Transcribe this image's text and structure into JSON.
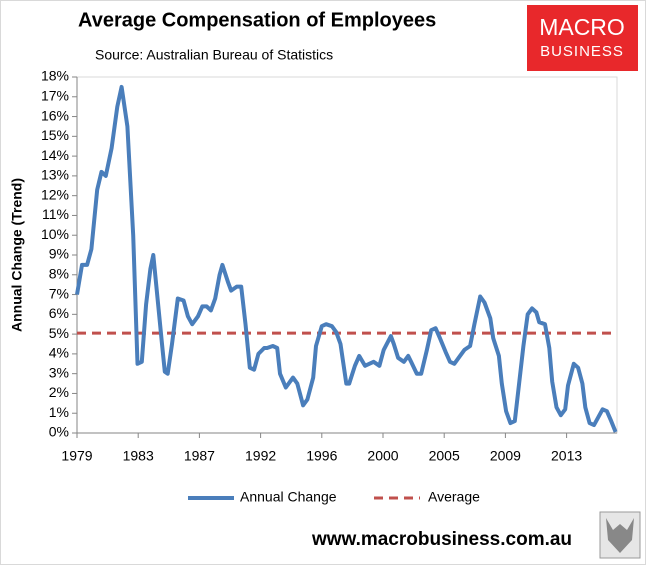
{
  "chart_data": {
    "type": "line",
    "title": "Average Compensation of Employees",
    "subtitle": "Source: Australian Bureau of Statistics",
    "ylabel": "Annual Change (Trend)",
    "logo": {
      "top": "MACRO",
      "bottom": "BUSINESS"
    },
    "footer": "www.macrobusiness.com.au",
    "xlim": [
      1979,
      2016.5
    ],
    "xticks": [
      {
        "value": 1979,
        "label": "1979"
      },
      {
        "value": 1983.25,
        "label": "1983"
      },
      {
        "value": 1987.5,
        "label": "1987"
      },
      {
        "value": 1991.75,
        "label": "1992"
      },
      {
        "value": 1996,
        "label": "1996"
      },
      {
        "value": 2000.25,
        "label": "2000"
      },
      {
        "value": 2004.5,
        "label": "2005"
      },
      {
        "value": 2008.75,
        "label": "2009"
      },
      {
        "value": 2013,
        "label": "2013"
      }
    ],
    "ylim": [
      0,
      18
    ],
    "yticks": [
      {
        "value": 0,
        "label": "0%"
      },
      {
        "value": 1,
        "label": "1%"
      },
      {
        "value": 2,
        "label": "2%"
      },
      {
        "value": 3,
        "label": "3%"
      },
      {
        "value": 4,
        "label": "4%"
      },
      {
        "value": 5,
        "label": "5%"
      },
      {
        "value": 6,
        "label": "6%"
      },
      {
        "value": 7,
        "label": "7%"
      },
      {
        "value": 8,
        "label": "8%"
      },
      {
        "value": 9,
        "label": "9%"
      },
      {
        "value": 10,
        "label": "10%"
      },
      {
        "value": 11,
        "label": "11%"
      },
      {
        "value": 12,
        "label": "12%"
      },
      {
        "value": 13,
        "label": "13%"
      },
      {
        "value": 14,
        "label": "14%"
      },
      {
        "value": 15,
        "label": "15%"
      },
      {
        "value": 16,
        "label": "16%"
      },
      {
        "value": 17,
        "label": "17%"
      },
      {
        "value": 18,
        "label": "18%"
      }
    ],
    "series": [
      {
        "name": "Annual Change",
        "color": "#4a7ebb",
        "x": [
          1979.0,
          1979.35,
          1979.7,
          1980.0,
          1980.4,
          1980.7,
          1981.0,
          1981.4,
          1981.8,
          1982.1,
          1982.5,
          1982.9,
          1983.2,
          1983.5,
          1983.8,
          1984.1,
          1984.3,
          1984.5,
          1984.9,
          1985.1,
          1985.3,
          1985.6,
          1986.0,
          1986.4,
          1986.7,
          1987.0,
          1987.4,
          1987.7,
          1988.0,
          1988.3,
          1988.6,
          1988.9,
          1989.1,
          1989.5,
          1989.7,
          1990.1,
          1990.4,
          1990.7,
          1991.0,
          1991.3,
          1991.6,
          1992.0,
          1992.2,
          1992.6,
          1992.9,
          1993.1,
          1993.5,
          1993.8,
          1994.0,
          1994.3,
          1994.7,
          1995.0,
          1995.4,
          1995.6,
          1996.0,
          1996.3,
          1996.7,
          1997.0,
          1997.3,
          1997.7,
          1997.9,
          1998.3,
          1998.6,
          1999.0,
          1999.3,
          1999.6,
          2000.0,
          2000.3,
          2000.8,
          2001.0,
          2001.3,
          2001.7,
          2002.0,
          2002.2,
          2002.6,
          2002.9,
          2003.3,
          2003.6,
          2003.9,
          2004.2,
          2004.6,
          2004.9,
          2005.2,
          2005.6,
          2005.9,
          2006.3,
          2006.6,
          2007.0,
          2007.3,
          2007.7,
          2007.9,
          2008.3,
          2008.5,
          2008.8,
          2009.1,
          2009.4,
          2009.7,
          2010.0,
          2010.3,
          2010.6,
          2010.9,
          2011.1,
          2011.5,
          2011.8,
          2012.0,
          2012.3,
          2012.6,
          2012.9,
          2013.1,
          2013.5,
          2013.8,
          2014.1,
          2014.3,
          2014.6,
          2014.9,
          2015.2,
          2015.5,
          2015.8,
          2016.1,
          2016.4
        ],
        "values": [
          7.0,
          8.5,
          8.5,
          9.3,
          12.3,
          13.2,
          13.0,
          14.4,
          16.5,
          17.5,
          15.5,
          10.0,
          3.5,
          3.6,
          6.5,
          8.3,
          9.0,
          7.5,
          4.5,
          3.1,
          3.0,
          4.5,
          6.8,
          6.7,
          5.9,
          5.5,
          5.9,
          6.4,
          6.4,
          6.2,
          6.8,
          8.0,
          8.5,
          7.6,
          7.2,
          7.4,
          7.4,
          5.5,
          3.3,
          3.2,
          4.0,
          4.3,
          4.3,
          4.4,
          4.3,
          3.0,
          2.3,
          2.6,
          2.8,
          2.5,
          1.4,
          1.7,
          2.8,
          4.4,
          5.4,
          5.5,
          5.4,
          5.1,
          4.5,
          2.5,
          2.5,
          3.4,
          3.9,
          3.4,
          3.5,
          3.6,
          3.4,
          4.2,
          4.9,
          4.5,
          3.8,
          3.6,
          3.9,
          3.6,
          3.0,
          3.0,
          4.2,
          5.2,
          5.3,
          4.8,
          4.1,
          3.6,
          3.5,
          3.9,
          4.2,
          4.4,
          5.5,
          6.9,
          6.6,
          5.8,
          4.8,
          3.9,
          2.5,
          1.1,
          0.5,
          0.6,
          2.5,
          4.4,
          6.0,
          6.3,
          6.1,
          5.6,
          5.5,
          4.3,
          2.6,
          1.3,
          0.9,
          1.2,
          2.4,
          3.5,
          3.3,
          2.5,
          1.3,
          0.5,
          0.4,
          0.8,
          1.2,
          1.1,
          0.6,
          0.05
        ]
      }
    ],
    "average": {
      "name": "Average",
      "color": "#c0504d",
      "value": 5.05
    }
  }
}
